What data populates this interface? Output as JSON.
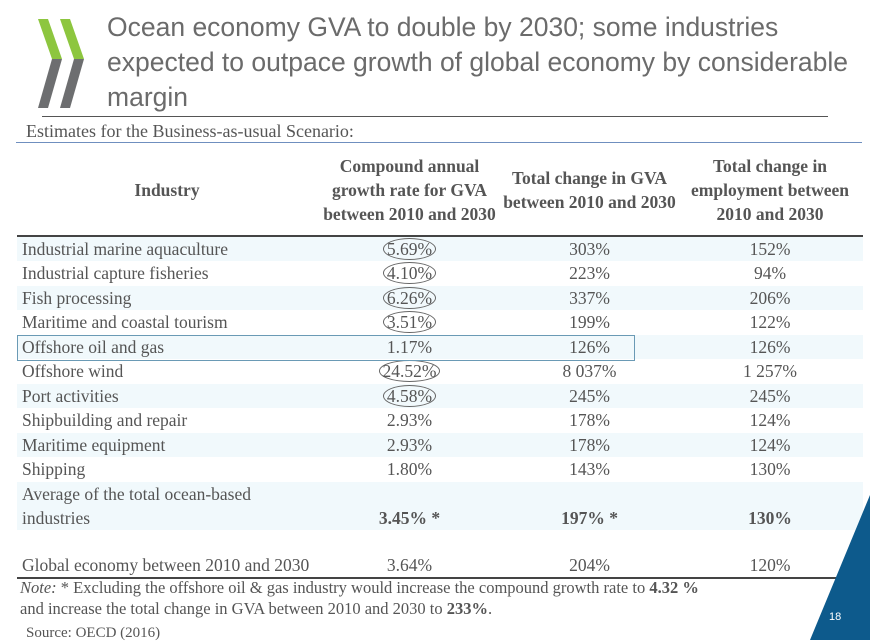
{
  "title": "Ocean economy GVA to double by 2030; some industries expected to outpace growth of global economy by considerable margin",
  "subtitle": "Estimates for the Business-as-usual Scenario:",
  "logo": {
    "name": "OECD chevrons logo",
    "colors": [
      "#8dc63f",
      "#6d6e70"
    ]
  },
  "table": {
    "headers": [
      "Industry",
      "Compound annual growth rate for GVA between 2010 and 2030",
      "Total change in GVA between 2010 and 2030",
      "Total change in employment between 2010 and 2030"
    ],
    "rows": [
      {
        "industry": "Industrial marine aquaculture",
        "cagr": "5.69%",
        "gva": "303%",
        "emp": "152%",
        "circled": true
      },
      {
        "industry": "Industrial capture fisheries",
        "cagr": "4.10%",
        "gva": "223%",
        "emp": "94%",
        "circled": true
      },
      {
        "industry": "Fish processing",
        "cagr": "6.26%",
        "gva": "337%",
        "emp": "206%",
        "circled": true
      },
      {
        "industry": "Maritime and coastal tourism",
        "cagr": "3.51%",
        "gva": "199%",
        "emp": "122%",
        "circled": true
      },
      {
        "industry": "Offshore oil and gas",
        "cagr": "1.17%",
        "gva": "126%",
        "emp": "126%",
        "boxed": true
      },
      {
        "industry": "Offshore wind",
        "cagr": "24.52%",
        "gva": "8 037%",
        "emp": "1 257%",
        "circled": true
      },
      {
        "industry": "Port activities",
        "cagr": "4.58%",
        "gva": "245%",
        "emp": "245%",
        "circled": true
      },
      {
        "industry": "Shipbuilding and repair",
        "cagr": "2.93%",
        "gva": "178%",
        "emp": "124%"
      },
      {
        "industry": "Maritime equipment",
        "cagr": "2.93%",
        "gva": "178%",
        "emp": "124%"
      },
      {
        "industry": "Shipping",
        "cagr": "1.80%",
        "gva": "143%",
        "emp": "130%"
      },
      {
        "industry": "Average of the total ocean-based industries",
        "cagr": "3.45% *",
        "gva": "197% *",
        "emp": "130%",
        "bold": true
      },
      {
        "industry": "Global economy between 2010 and 2030",
        "cagr": "3.64%",
        "gva": "204%",
        "emp": "120%"
      }
    ]
  },
  "note": {
    "label": "Note:",
    "text1": " * Excluding the offshore oil & gas industry would increase the compound growth rate to ",
    "v1": "4.32 %",
    "text2": "and increase the total change in GVA between 2010 and 2030 to ",
    "v2": "233%",
    "text3": "."
  },
  "source": "Source: OECD (2016)",
  "page_number": "18",
  "colors": {
    "accent": "#0d5a8c",
    "highlight_box": "#6a9ab5"
  }
}
